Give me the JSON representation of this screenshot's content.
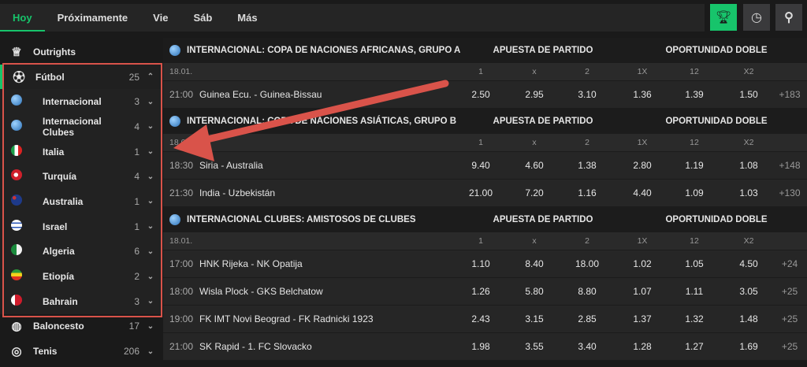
{
  "tabs": [
    "Hoy",
    "Próximamente",
    "Vie",
    "Sáb",
    "Más"
  ],
  "accent": "#17c46b",
  "annotation_color": "#d9534a",
  "top_buttons": [
    {
      "icon": "trophy-icon",
      "active": true
    },
    {
      "icon": "clock-icon"
    },
    {
      "icon": "search-icon"
    }
  ],
  "sidebar": {
    "outrights": "Outrights",
    "futbol": {
      "label": "Fútbol",
      "count": "25"
    },
    "countries": [
      {
        "label": "Internacional",
        "count": "3",
        "flag": "globe"
      },
      {
        "label": "Internacional Clubes",
        "count": "4",
        "flag": "globe"
      },
      {
        "label": "Italia",
        "count": "1",
        "flag": "italy"
      },
      {
        "label": "Turquía",
        "count": "4",
        "flag": "turkey"
      },
      {
        "label": "Australia",
        "count": "1",
        "flag": "australia"
      },
      {
        "label": "Israel",
        "count": "1",
        "flag": "israel"
      },
      {
        "label": "Algeria",
        "count": "6",
        "flag": "algeria"
      },
      {
        "label": "Etiopía",
        "count": "2",
        "flag": "ethiopia"
      },
      {
        "label": "Bahrain",
        "count": "3",
        "flag": "bahrain"
      }
    ],
    "baloncesto": {
      "label": "Baloncesto",
      "count": "17"
    },
    "tenis": {
      "label": "Tenis",
      "count": "206"
    }
  },
  "market_headers": {
    "match": "APUESTA DE PARTIDO",
    "double": "OPORTUNIDAD DOBLE",
    "cols": [
      "1",
      "x",
      "2",
      "1X",
      "12",
      "X2"
    ]
  },
  "sections": [
    {
      "title": "INTERNACIONAL: COPA DE NACIONES AFRICANAS, GRUPO A",
      "date": "18.01.",
      "matches": [
        {
          "time": "21:00",
          "teams": "Guinea Ecu. - Guinea-Bissau",
          "odds": [
            "2.50",
            "2.95",
            "3.10",
            "1.36",
            "1.39",
            "1.50"
          ],
          "more": "+183"
        }
      ]
    },
    {
      "title": "INTERNACIONAL: COPA DE NACIONES ASIÁTICAS, GRUPO B",
      "date": "18.01.",
      "matches": [
        {
          "time": "18:30",
          "teams": "Siria - Australia",
          "odds": [
            "9.40",
            "4.60",
            "1.38",
            "2.80",
            "1.19",
            "1.08"
          ],
          "more": "+148"
        },
        {
          "time": "21:30",
          "teams": "India - Uzbekistán",
          "odds": [
            "21.00",
            "7.20",
            "1.16",
            "4.40",
            "1.09",
            "1.03"
          ],
          "more": "+130"
        }
      ]
    },
    {
      "title": "INTERNACIONAL CLUBES: AMISTOSOS DE CLUBES",
      "date": "18.01.",
      "matches": [
        {
          "time": "17:00",
          "teams": "HNK Rijeka - NK Opatija",
          "odds": [
            "1.10",
            "8.40",
            "18.00",
            "1.02",
            "1.05",
            "4.50"
          ],
          "more": "+24"
        },
        {
          "time": "18:00",
          "teams": "Wisla Plock - GKS Belchatow",
          "odds": [
            "1.26",
            "5.80",
            "8.80",
            "1.07",
            "1.11",
            "3.05"
          ],
          "more": "+25"
        },
        {
          "time": "19:00",
          "teams": "FK IMT Novi Beograd - FK Radnicki 1923",
          "odds": [
            "2.43",
            "3.15",
            "2.85",
            "1.37",
            "1.32",
            "1.48"
          ],
          "more": "+25"
        },
        {
          "time": "21:00",
          "teams": "SK Rapid - 1. FC Slovacko",
          "odds": [
            "1.98",
            "3.55",
            "3.40",
            "1.28",
            "1.27",
            "1.69"
          ],
          "more": "+25"
        }
      ]
    }
  ]
}
